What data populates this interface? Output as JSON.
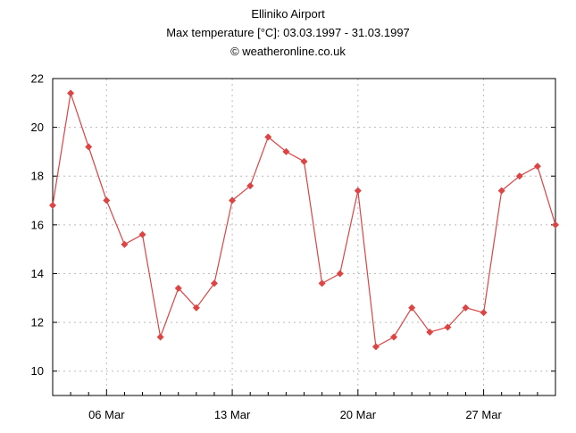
{
  "header": {
    "title": "Elliniko Airport",
    "subtitle": "Max temperature [°C]: 03.03.1997 - 31.03.1997",
    "credit": "© weatheronline.co.uk"
  },
  "colors": {
    "series": "#dd4444",
    "grid": "#bbbbbb",
    "axis": "#000000"
  },
  "chart_data": {
    "type": "line",
    "title": "Elliniko Airport",
    "subtitle": "Max temperature [°C]: 03.03.1997 - 31.03.1997",
    "xlabel": "",
    "ylabel": "",
    "x_start_day": 3,
    "x_end_day": 31,
    "ylim": [
      9,
      22
    ],
    "yticks": [
      10,
      12,
      14,
      16,
      18,
      20,
      22
    ],
    "xticks": [
      {
        "day": 6,
        "label": "06 Mar"
      },
      {
        "day": 13,
        "label": "13 Mar"
      },
      {
        "day": 20,
        "label": "20 Mar"
      },
      {
        "day": 27,
        "label": "27 Mar"
      }
    ],
    "grid": true,
    "series": [
      {
        "name": "Max temperature",
        "x": [
          3,
          4,
          5,
          6,
          7,
          8,
          9,
          10,
          11,
          12,
          13,
          14,
          15,
          16,
          17,
          18,
          19,
          20,
          21,
          22,
          23,
          24,
          25,
          26,
          27,
          28,
          29,
          30,
          31
        ],
        "values": [
          16.8,
          21.4,
          19.2,
          17.0,
          15.2,
          15.6,
          11.4,
          13.4,
          12.6,
          13.6,
          17.0,
          17.6,
          19.6,
          19.0,
          18.6,
          13.6,
          14.0,
          17.4,
          11.0,
          11.4,
          12.6,
          11.6,
          11.8,
          12.6,
          12.4,
          17.4,
          18.0,
          18.4,
          16.0
        ]
      }
    ]
  }
}
